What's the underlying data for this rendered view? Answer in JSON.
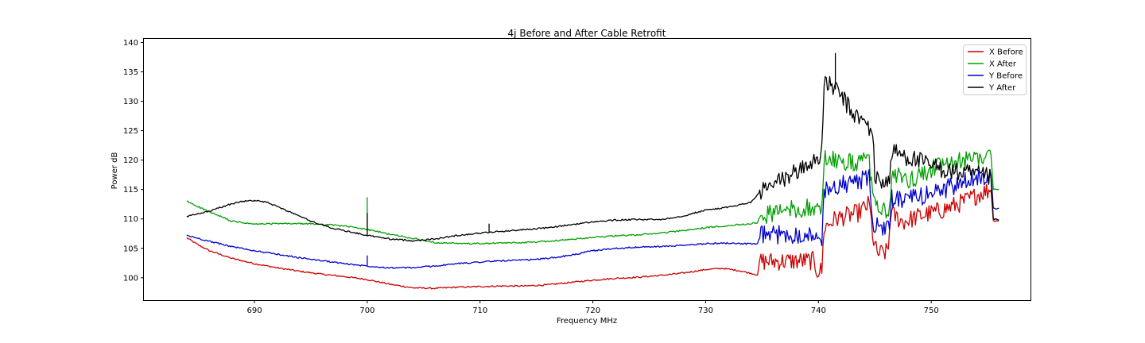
{
  "chart_data": {
    "type": "line",
    "title": "4j Before and After Cable Retrofit",
    "xlabel": "Frequency MHz",
    "ylabel": "Power dB",
    "xlim": [
      680.2,
      758.8
    ],
    "ylim": [
      96.2,
      140.6
    ],
    "xticks": [
      690,
      700,
      710,
      720,
      730,
      740,
      750
    ],
    "yticks": [
      100,
      105,
      110,
      115,
      120,
      125,
      130,
      135,
      140
    ],
    "grid": false,
    "legend_position": "top-right",
    "series": [
      {
        "name": "X Before",
        "color": "#cc0000",
        "points": [
          [
            684.0,
            106.8
          ],
          [
            685.0,
            105.6
          ],
          [
            686.0,
            104.6
          ],
          [
            688.0,
            103.3
          ],
          [
            690.0,
            102.4
          ],
          [
            692.0,
            101.7
          ],
          [
            694.0,
            101.1
          ],
          [
            696.0,
            100.6
          ],
          [
            698.0,
            100.2
          ],
          [
            700.0,
            99.7
          ],
          [
            702.0,
            98.9
          ],
          [
            704.0,
            98.3
          ],
          [
            706.0,
            98.2
          ],
          [
            708.0,
            98.4
          ],
          [
            710.0,
            98.5
          ],
          [
            712.0,
            98.6
          ],
          [
            714.0,
            98.6
          ],
          [
            716.0,
            98.8
          ],
          [
            718.0,
            99.2
          ],
          [
            720.0,
            99.6
          ],
          [
            722.0,
            99.9
          ],
          [
            724.0,
            100.1
          ],
          [
            726.0,
            100.4
          ],
          [
            728.0,
            100.8
          ],
          [
            730.0,
            101.4
          ],
          [
            731.5,
            101.6
          ],
          [
            733.0,
            101.2
          ],
          [
            734.6,
            100.5
          ],
          [
            734.8,
            102.8
          ],
          [
            737.0,
            102.8
          ],
          [
            739.5,
            102.9
          ],
          [
            739.9,
            101.2
          ],
          [
            740.3,
            101.2
          ],
          [
            740.5,
            108.5
          ],
          [
            741.5,
            110.0
          ],
          [
            742.5,
            110.5
          ],
          [
            743.5,
            111.0
          ],
          [
            744.5,
            112.5
          ],
          [
            744.9,
            106.0
          ],
          [
            745.2,
            104.1
          ],
          [
            746.0,
            104.3
          ],
          [
            746.2,
            105.0
          ],
          [
            746.4,
            111.0
          ],
          [
            747.5,
            109.5
          ],
          [
            749.0,
            110.5
          ],
          [
            751.0,
            111.5
          ],
          [
            753.0,
            113.0
          ],
          [
            754.5,
            114.5
          ],
          [
            755.3,
            115.0
          ],
          [
            755.5,
            109.7
          ],
          [
            756.0,
            109.7
          ]
        ]
      },
      {
        "name": "X After",
        "color": "#00a000",
        "points": [
          [
            684.0,
            113.0
          ],
          [
            686.0,
            111.2
          ],
          [
            688.0,
            109.6
          ],
          [
            690.0,
            109.1
          ],
          [
            692.0,
            109.2
          ],
          [
            694.0,
            109.2
          ],
          [
            696.0,
            109.1
          ],
          [
            698.0,
            108.8
          ],
          [
            700.0,
            108.2
          ],
          [
            702.0,
            107.4
          ],
          [
            704.0,
            106.7
          ],
          [
            706.0,
            106.0
          ],
          [
            708.0,
            105.8
          ],
          [
            710.0,
            105.8
          ],
          [
            712.0,
            105.9
          ],
          [
            714.0,
            106.0
          ],
          [
            716.0,
            106.2
          ],
          [
            718.0,
            106.5
          ],
          [
            720.0,
            106.9
          ],
          [
            722.0,
            107.1
          ],
          [
            724.0,
            107.3
          ],
          [
            726.0,
            107.6
          ],
          [
            728.0,
            108.0
          ],
          [
            730.0,
            108.5
          ],
          [
            732.0,
            108.9
          ],
          [
            734.6,
            109.3
          ],
          [
            734.8,
            110.5
          ],
          [
            737.0,
            111.5
          ],
          [
            739.5,
            112.0
          ],
          [
            739.9,
            111.2
          ],
          [
            740.3,
            111.5
          ],
          [
            740.5,
            120.5
          ],
          [
            741.5,
            120.0
          ],
          [
            742.5,
            119.5
          ],
          [
            743.5,
            119.5
          ],
          [
            744.5,
            120.0
          ],
          [
            744.9,
            112.5
          ],
          [
            746.0,
            111.0
          ],
          [
            746.3,
            112.0
          ],
          [
            746.5,
            117.5
          ],
          [
            748.0,
            116.5
          ],
          [
            750.0,
            118.5
          ],
          [
            752.0,
            119.5
          ],
          [
            754.0,
            120.5
          ],
          [
            755.3,
            121.0
          ],
          [
            755.5,
            115.0
          ],
          [
            756.0,
            115.0
          ]
        ]
      },
      {
        "name": "Y Before",
        "color": "#0000cc",
        "points": [
          [
            684.0,
            107.2
          ],
          [
            686.0,
            106.2
          ],
          [
            688.0,
            105.3
          ],
          [
            690.0,
            104.6
          ],
          [
            692.0,
            104.0
          ],
          [
            694.0,
            103.4
          ],
          [
            696.0,
            102.9
          ],
          [
            698.0,
            102.4
          ],
          [
            700.0,
            102.0
          ],
          [
            702.0,
            101.7
          ],
          [
            704.0,
            101.7
          ],
          [
            706.0,
            102.0
          ],
          [
            708.0,
            102.4
          ],
          [
            710.0,
            102.7
          ],
          [
            712.0,
            102.9
          ],
          [
            714.0,
            103.0
          ],
          [
            716.0,
            103.3
          ],
          [
            718.0,
            103.8
          ],
          [
            720.0,
            104.6
          ],
          [
            722.0,
            105.0
          ],
          [
            724.0,
            105.2
          ],
          [
            726.0,
            105.3
          ],
          [
            728.0,
            105.5
          ],
          [
            730.0,
            105.8
          ],
          [
            732.0,
            105.9
          ],
          [
            734.6,
            105.7
          ],
          [
            734.8,
            107.3
          ],
          [
            737.0,
            107.3
          ],
          [
            739.5,
            107.5
          ],
          [
            739.9,
            106.0
          ],
          [
            740.3,
            106.3
          ],
          [
            740.5,
            115.0
          ],
          [
            741.5,
            115.5
          ],
          [
            742.5,
            116.0
          ],
          [
            743.5,
            116.5
          ],
          [
            744.5,
            116.8
          ],
          [
            744.9,
            109.0
          ],
          [
            746.0,
            108.0
          ],
          [
            746.3,
            108.5
          ],
          [
            746.5,
            113.5
          ],
          [
            748.0,
            113.2
          ],
          [
            750.0,
            114.5
          ],
          [
            752.0,
            115.5
          ],
          [
            754.0,
            117.0
          ],
          [
            755.3,
            117.5
          ],
          [
            755.5,
            111.8
          ],
          [
            756.0,
            111.8
          ]
        ]
      },
      {
        "name": "Y After",
        "color": "#000000",
        "points": [
          [
            684.0,
            110.4
          ],
          [
            686.0,
            111.3
          ],
          [
            688.0,
            112.6
          ],
          [
            689.5,
            113.2
          ],
          [
            691.0,
            112.9
          ],
          [
            693.0,
            111.3
          ],
          [
            695.0,
            109.6
          ],
          [
            697.0,
            108.4
          ],
          [
            699.0,
            107.6
          ],
          [
            700.0,
            107.2
          ],
          [
            702.0,
            106.6
          ],
          [
            704.0,
            106.3
          ],
          [
            706.0,
            106.6
          ],
          [
            708.0,
            107.2
          ],
          [
            710.0,
            107.6
          ],
          [
            712.0,
            107.9
          ],
          [
            714.0,
            108.2
          ],
          [
            716.0,
            108.5
          ],
          [
            718.0,
            109.0
          ],
          [
            720.0,
            109.5
          ],
          [
            722.0,
            109.8
          ],
          [
            724.0,
            109.9
          ],
          [
            726.0,
            109.9
          ],
          [
            728.0,
            110.5
          ],
          [
            730.0,
            111.5
          ],
          [
            732.0,
            112.0
          ],
          [
            734.0,
            112.8
          ],
          [
            734.8,
            114.5
          ],
          [
            736.0,
            115.8
          ],
          [
            737.5,
            117.5
          ],
          [
            739.0,
            119.0
          ],
          [
            740.0,
            120.5
          ],
          [
            740.3,
            122.0
          ],
          [
            740.5,
            132.5
          ],
          [
            741.0,
            133.0
          ],
          [
            741.5,
            132.0
          ],
          [
            742.0,
            131.0
          ],
          [
            742.5,
            129.5
          ],
          [
            743.0,
            128.0
          ],
          [
            744.0,
            126.5
          ],
          [
            744.8,
            125.0
          ],
          [
            745.0,
            117.0
          ],
          [
            746.0,
            116.2
          ],
          [
            746.3,
            116.5
          ],
          [
            746.5,
            121.5
          ],
          [
            748.0,
            120.5
          ],
          [
            750.0,
            119.0
          ],
          [
            752.0,
            118.0
          ],
          [
            754.0,
            117.5
          ],
          [
            755.3,
            117.0
          ],
          [
            755.5,
            110.0
          ],
          [
            756.0,
            109.8
          ]
        ]
      }
    ],
    "annotations_spikes": [
      {
        "series": "X After",
        "x": 700.0,
        "peak": 113.7
      },
      {
        "series": "Y After",
        "x": 700.0,
        "peak": 111.0
      },
      {
        "series": "Y After",
        "x": 741.5,
        "peak": 138.2
      },
      {
        "series": "Y After",
        "x": 710.8,
        "peak": 109.2
      },
      {
        "series": "Y Before",
        "x": 700.0,
        "peak": 103.8
      }
    ]
  }
}
